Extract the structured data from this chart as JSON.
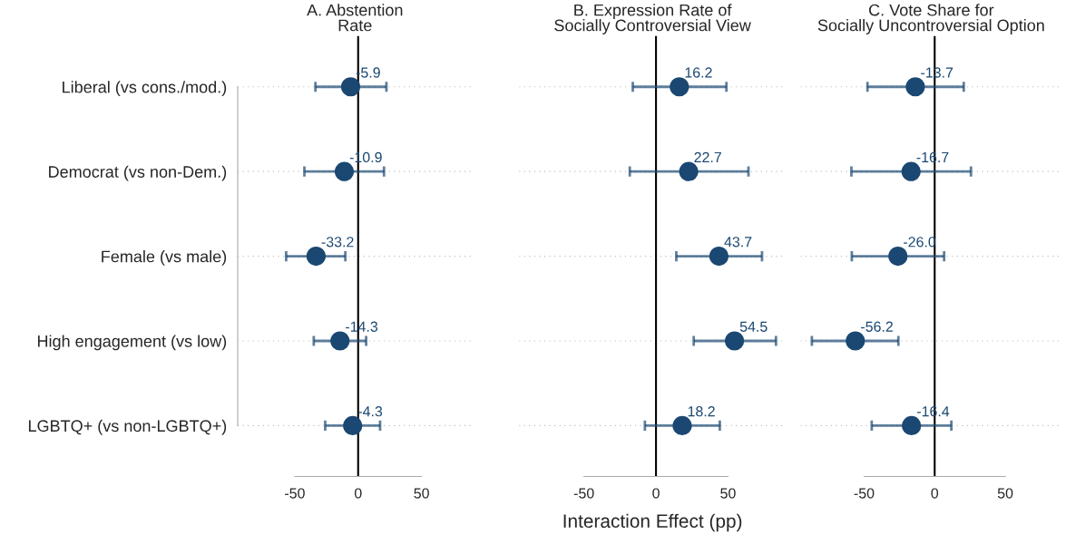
{
  "chart_data": [
    {
      "type": "scatter",
      "title": "A. Abstention\nRate",
      "orientation": "horizontal",
      "categories": [
        "Liberal (vs cons./mod.)",
        "Democrat (vs non-Dem.)",
        "Female (vs male)",
        "High engagement (vs low)",
        "LGBTQ+ (vs non-LGBTQ+)"
      ],
      "series": [
        {
          "color": "#1b4872",
          "values": [
            -5.9,
            -10.9,
            -33.2,
            -14.3,
            -4.3
          ],
          "value_labels": [
            "-5.9",
            "-10.9",
            "-33.2",
            "-14.3",
            "-4.3"
          ],
          "errors": [
            [
              -33.7,
              22.3
            ],
            [
              -42.4,
              20.4
            ],
            [
              -56.8,
              -10.1
            ],
            [
              -35.0,
              6.3
            ],
            [
              -26.0,
              17.3
            ]
          ]
        }
      ],
      "xlim": [
        -95,
        90
      ],
      "xticks": [
        -50,
        0,
        50
      ],
      "ref_lines": [
        {
          "axis": "x",
          "value": 0,
          "color": "#000000"
        }
      ],
      "grid": "y",
      "marker": "circle"
    },
    {
      "type": "scatter",
      "title": "B. Expression Rate of\nSocially Controversial View",
      "xlabel": "Interaction Effect (pp)",
      "orientation": "horizontal",
      "categories": [
        null,
        null,
        null,
        null,
        null
      ],
      "series": [
        {
          "color": "#1b4872",
          "values": [
            16.2,
            22.7,
            43.7,
            54.5,
            18.2
          ],
          "value_labels": [
            "16.2",
            "22.7",
            "43.7",
            "54.5",
            "18.2"
          ],
          "errors": [
            [
              -16.1,
              48.9
            ],
            [
              -18.2,
              64.2
            ],
            [
              14.1,
              73.6
            ],
            [
              26.2,
              83.3
            ],
            [
              -7.7,
              44.3
            ]
          ]
        }
      ],
      "xlim": [
        -95,
        90
      ],
      "xticks": [
        -50,
        0,
        50
      ],
      "ref_lines": [
        {
          "axis": "x",
          "value": 0,
          "color": "#000000"
        }
      ],
      "grid": "y",
      "marker": "circle",
      "tick_labels": "x"
    },
    {
      "type": "scatter",
      "title": "C. Vote Share for\nSocially Uncontroversial Option",
      "orientation": "horizontal",
      "categories": [
        null,
        null,
        null,
        null,
        null
      ],
      "series": [
        {
          "color": "#1b4872",
          "values": [
            -13.7,
            -16.7,
            -26.0,
            -56.2,
            -16.4
          ],
          "value_labels": [
            "-13.7",
            "-16.7",
            "-26.0",
            "-56.2",
            "-16.4"
          ],
          "errors": [
            [
              -47.6,
              20.6
            ],
            [
              -59.0,
              25.7
            ],
            [
              -58.7,
              6.7
            ],
            [
              -87.0,
              -25.7
            ],
            [
              -44.6,
              11.8
            ]
          ]
        }
      ],
      "xlim": [
        -95,
        90
      ],
      "xticks": [
        -50,
        0,
        50
      ],
      "ref_lines": [
        {
          "axis": "x",
          "value": 0,
          "color": "#000000"
        }
      ],
      "grid": "y",
      "marker": "circle",
      "tick_labels": "x"
    }
  ]
}
